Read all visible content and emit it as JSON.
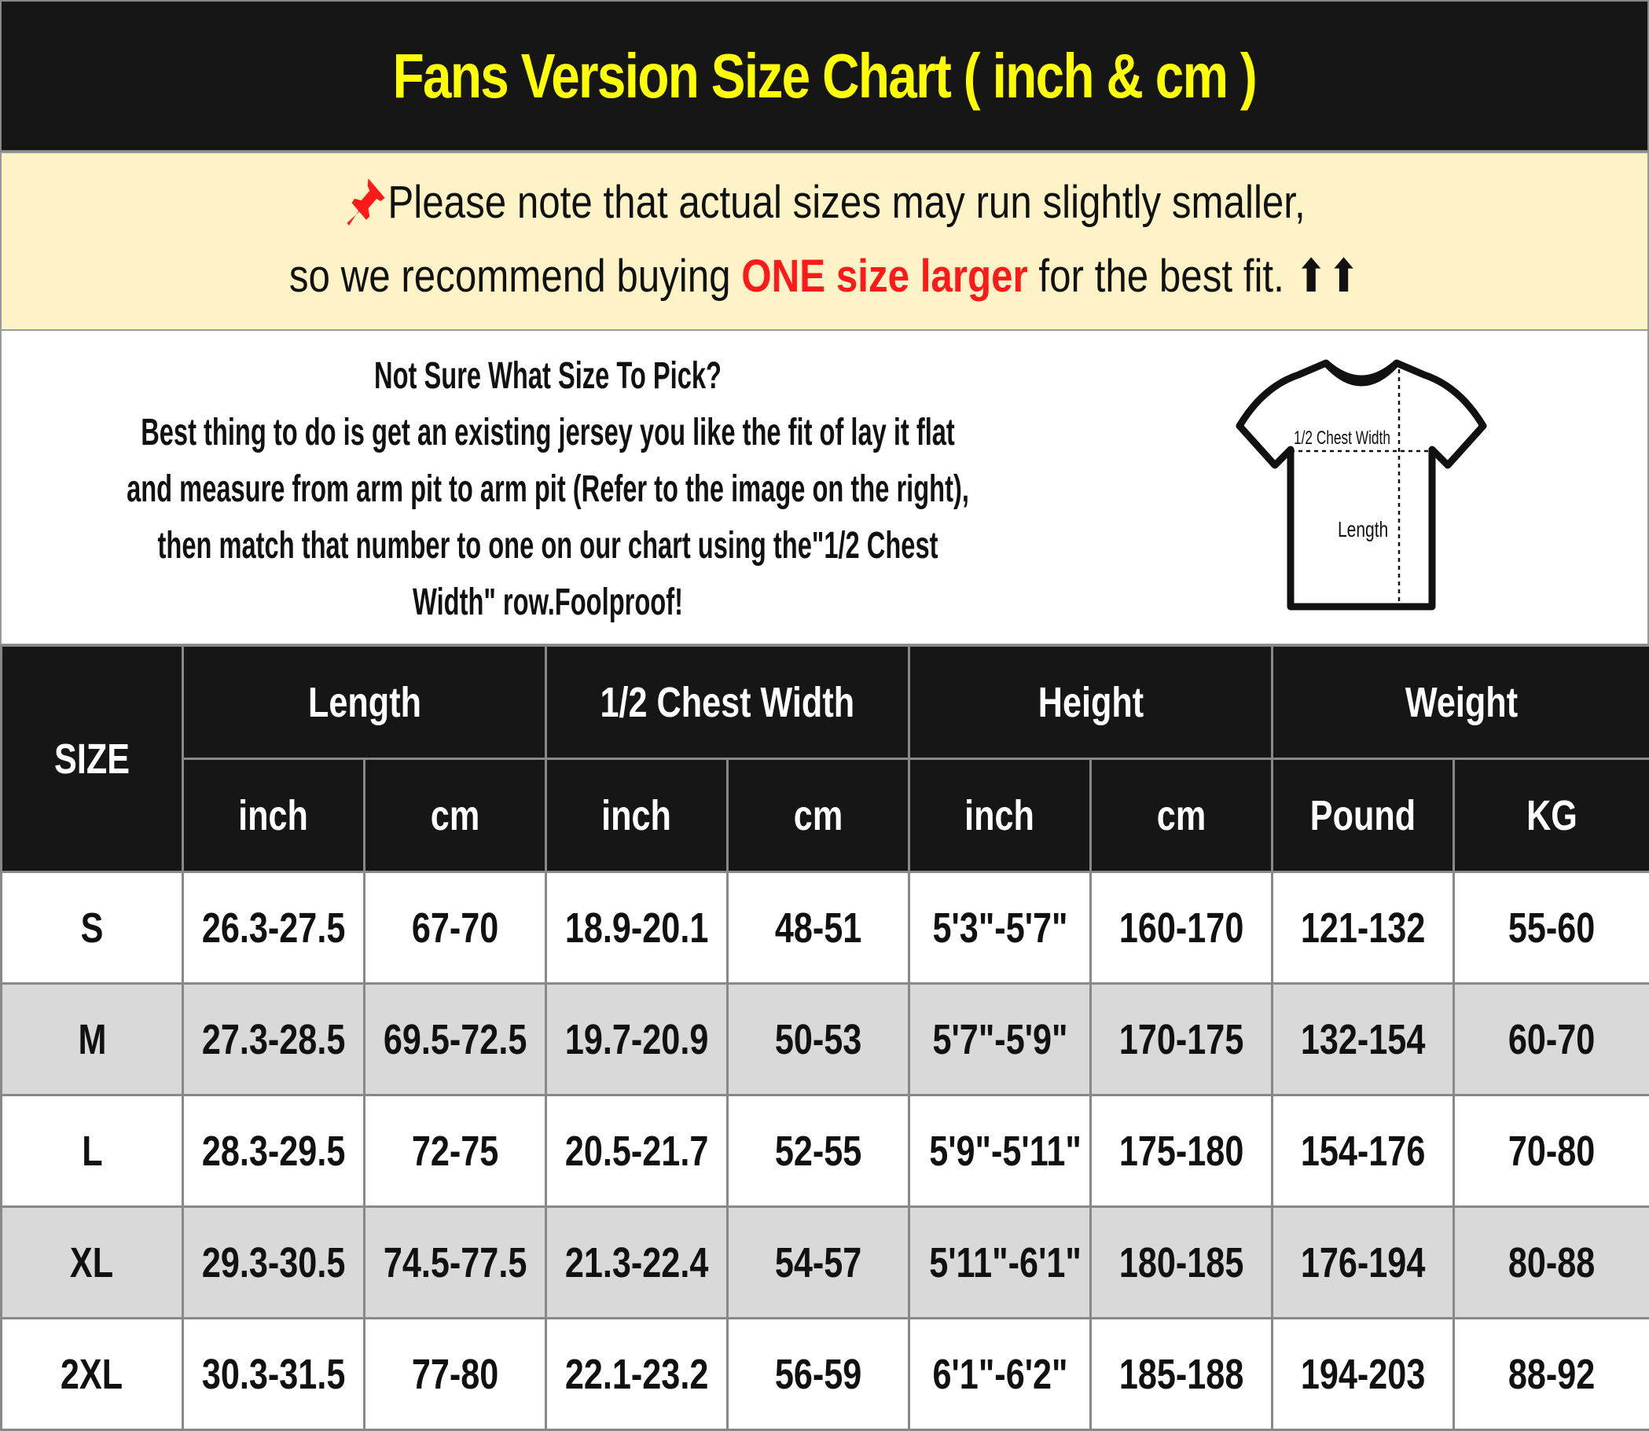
{
  "title": "Fans Version Size Chart ( inch & cm )",
  "note": {
    "icon": "pushpin-icon",
    "line1": "Please note that actual sizes may run slightly smaller,",
    "line2_pre": "so we recommend buying ",
    "line2_highlight": "ONE size larger",
    "line2_post": " for the best fit.",
    "arrows": "⬆⬆",
    "highlight_color": "#ff1a1a"
  },
  "info": {
    "lines": [
      "Not Sure What Size To Pick?",
      "Best thing to do is get an existing jersey you like the fit of lay it flat",
      "and measure from arm pit to arm pit (Refer to the image on the right),",
      "then match that number to one on our chart using the\"1/2 Chest",
      "Width\" row.Foolproof!"
    ],
    "diagram": {
      "chest_label": "1/2 Chest Width",
      "length_label": "Length"
    }
  },
  "table": {
    "size_header": "SIZE",
    "groups": [
      "Length",
      "1/2 Chest Width",
      "Height",
      "Weight"
    ],
    "units": [
      "inch",
      "cm",
      "inch",
      "cm",
      "inch",
      "cm",
      "Pound",
      "KG"
    ],
    "rows": [
      [
        "S",
        "26.3-27.5",
        "67-70",
        "18.9-20.1",
        "48-51",
        "5'3\"-5'7\"",
        "160-170",
        "121-132",
        "55-60"
      ],
      [
        "M",
        "27.3-28.5",
        "69.5-72.5",
        "19.7-20.9",
        "50-53",
        "5'7\"-5'9\"",
        "170-175",
        "132-154",
        "60-70"
      ],
      [
        "L",
        "28.3-29.5",
        "72-75",
        "20.5-21.7",
        "52-55",
        "5'9\"-5'11\"",
        "175-180",
        "154-176",
        "70-80"
      ],
      [
        "XL",
        "29.3-30.5",
        "74.5-77.5",
        "21.3-22.4",
        "54-57",
        "5'11\"-6'1\"",
        "180-185",
        "176-194",
        "80-88"
      ],
      [
        "2XL",
        "30.3-31.5",
        "77-80",
        "22.1-23.2",
        "56-59",
        "6'1\"-6'2\"",
        "185-188",
        "194-203",
        "88-92"
      ]
    ]
  }
}
